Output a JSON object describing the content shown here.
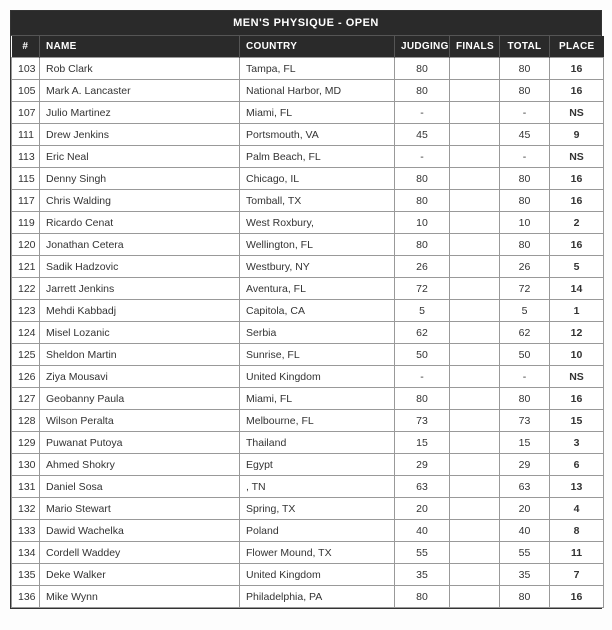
{
  "title": "MEN'S PHYSIQUE - OPEN",
  "columns": [
    "#",
    "NAME",
    "COUNTRY",
    "JUDGING",
    "FINALS",
    "TOTAL",
    "PLACE"
  ],
  "colors": {
    "header_bg": "#2a2a2a",
    "header_fg": "#ffffff",
    "border": "#999999",
    "text": "#333333"
  },
  "rows": [
    {
      "num": "103",
      "name": "Rob Clark",
      "country": "Tampa, FL",
      "judging": "80",
      "finals": "",
      "total": "80",
      "place": "16"
    },
    {
      "num": "105",
      "name": "Mark A. Lancaster",
      "country": "National Harbor, MD",
      "judging": "80",
      "finals": "",
      "total": "80",
      "place": "16"
    },
    {
      "num": "107",
      "name": "Julio Martinez",
      "country": "Miami, FL",
      "judging": "-",
      "finals": "",
      "total": "-",
      "place": "NS"
    },
    {
      "num": "111",
      "name": "Drew Jenkins",
      "country": "Portsmouth, VA",
      "judging": "45",
      "finals": "",
      "total": "45",
      "place": "9"
    },
    {
      "num": "113",
      "name": "Eric Neal",
      "country": "Palm Beach, FL",
      "judging": "-",
      "finals": "",
      "total": "-",
      "place": "NS"
    },
    {
      "num": "115",
      "name": "Denny Singh",
      "country": "Chicago, IL",
      "judging": "80",
      "finals": "",
      "total": "80",
      "place": "16"
    },
    {
      "num": "117",
      "name": "Chris Walding",
      "country": "Tomball, TX",
      "judging": "80",
      "finals": "",
      "total": "80",
      "place": "16"
    },
    {
      "num": "119",
      "name": "Ricardo Cenat",
      "country": "West Roxbury,",
      "judging": "10",
      "finals": "",
      "total": "10",
      "place": "2"
    },
    {
      "num": "120",
      "name": "Jonathan Cetera",
      "country": "Wellington, FL",
      "judging": "80",
      "finals": "",
      "total": "80",
      "place": "16"
    },
    {
      "num": "121",
      "name": "Sadik Hadzovic",
      "country": "Westbury, NY",
      "judging": "26",
      "finals": "",
      "total": "26",
      "place": "5"
    },
    {
      "num": "122",
      "name": "Jarrett Jenkins",
      "country": "Aventura, FL",
      "judging": "72",
      "finals": "",
      "total": "72",
      "place": "14"
    },
    {
      "num": "123",
      "name": "Mehdi Kabbadj",
      "country": "Capitola, CA",
      "judging": "5",
      "finals": "",
      "total": "5",
      "place": "1"
    },
    {
      "num": "124",
      "name": "Misel Lozanic",
      "country": "Serbia",
      "judging": "62",
      "finals": "",
      "total": "62",
      "place": "12"
    },
    {
      "num": "125",
      "name": "Sheldon Martin",
      "country": "Sunrise, FL",
      "judging": "50",
      "finals": "",
      "total": "50",
      "place": "10"
    },
    {
      "num": "126",
      "name": "Ziya Mousavi",
      "country": "United Kingdom",
      "judging": "-",
      "finals": "",
      "total": "-",
      "place": "NS"
    },
    {
      "num": "127",
      "name": "Geobanny Paula",
      "country": "Miami, FL",
      "judging": "80",
      "finals": "",
      "total": "80",
      "place": "16"
    },
    {
      "num": "128",
      "name": "Wilson Peralta",
      "country": "Melbourne, FL",
      "judging": "73",
      "finals": "",
      "total": "73",
      "place": "15"
    },
    {
      "num": "129",
      "name": "Puwanat Putoya",
      "country": "Thailand",
      "judging": "15",
      "finals": "",
      "total": "15",
      "place": "3"
    },
    {
      "num": "130",
      "name": "Ahmed Shokry",
      "country": "Egypt",
      "judging": "29",
      "finals": "",
      "total": "29",
      "place": "6"
    },
    {
      "num": "131",
      "name": "Daniel Sosa",
      "country": ", TN",
      "judging": "63",
      "finals": "",
      "total": "63",
      "place": "13"
    },
    {
      "num": "132",
      "name": "Mario Stewart",
      "country": "Spring, TX",
      "judging": "20",
      "finals": "",
      "total": "20",
      "place": "4"
    },
    {
      "num": "133",
      "name": "Dawid Wachelka",
      "country": "Poland",
      "judging": "40",
      "finals": "",
      "total": "40",
      "place": "8"
    },
    {
      "num": "134",
      "name": "Cordell Waddey",
      "country": "Flower Mound, TX",
      "judging": "55",
      "finals": "",
      "total": "55",
      "place": "11"
    },
    {
      "num": "135",
      "name": "Deke Walker",
      "country": "United Kingdom",
      "judging": "35",
      "finals": "",
      "total": "35",
      "place": "7"
    },
    {
      "num": "136",
      "name": "Mike Wynn",
      "country": "Philadelphia, PA",
      "judging": "80",
      "finals": "",
      "total": "80",
      "place": "16"
    }
  ]
}
